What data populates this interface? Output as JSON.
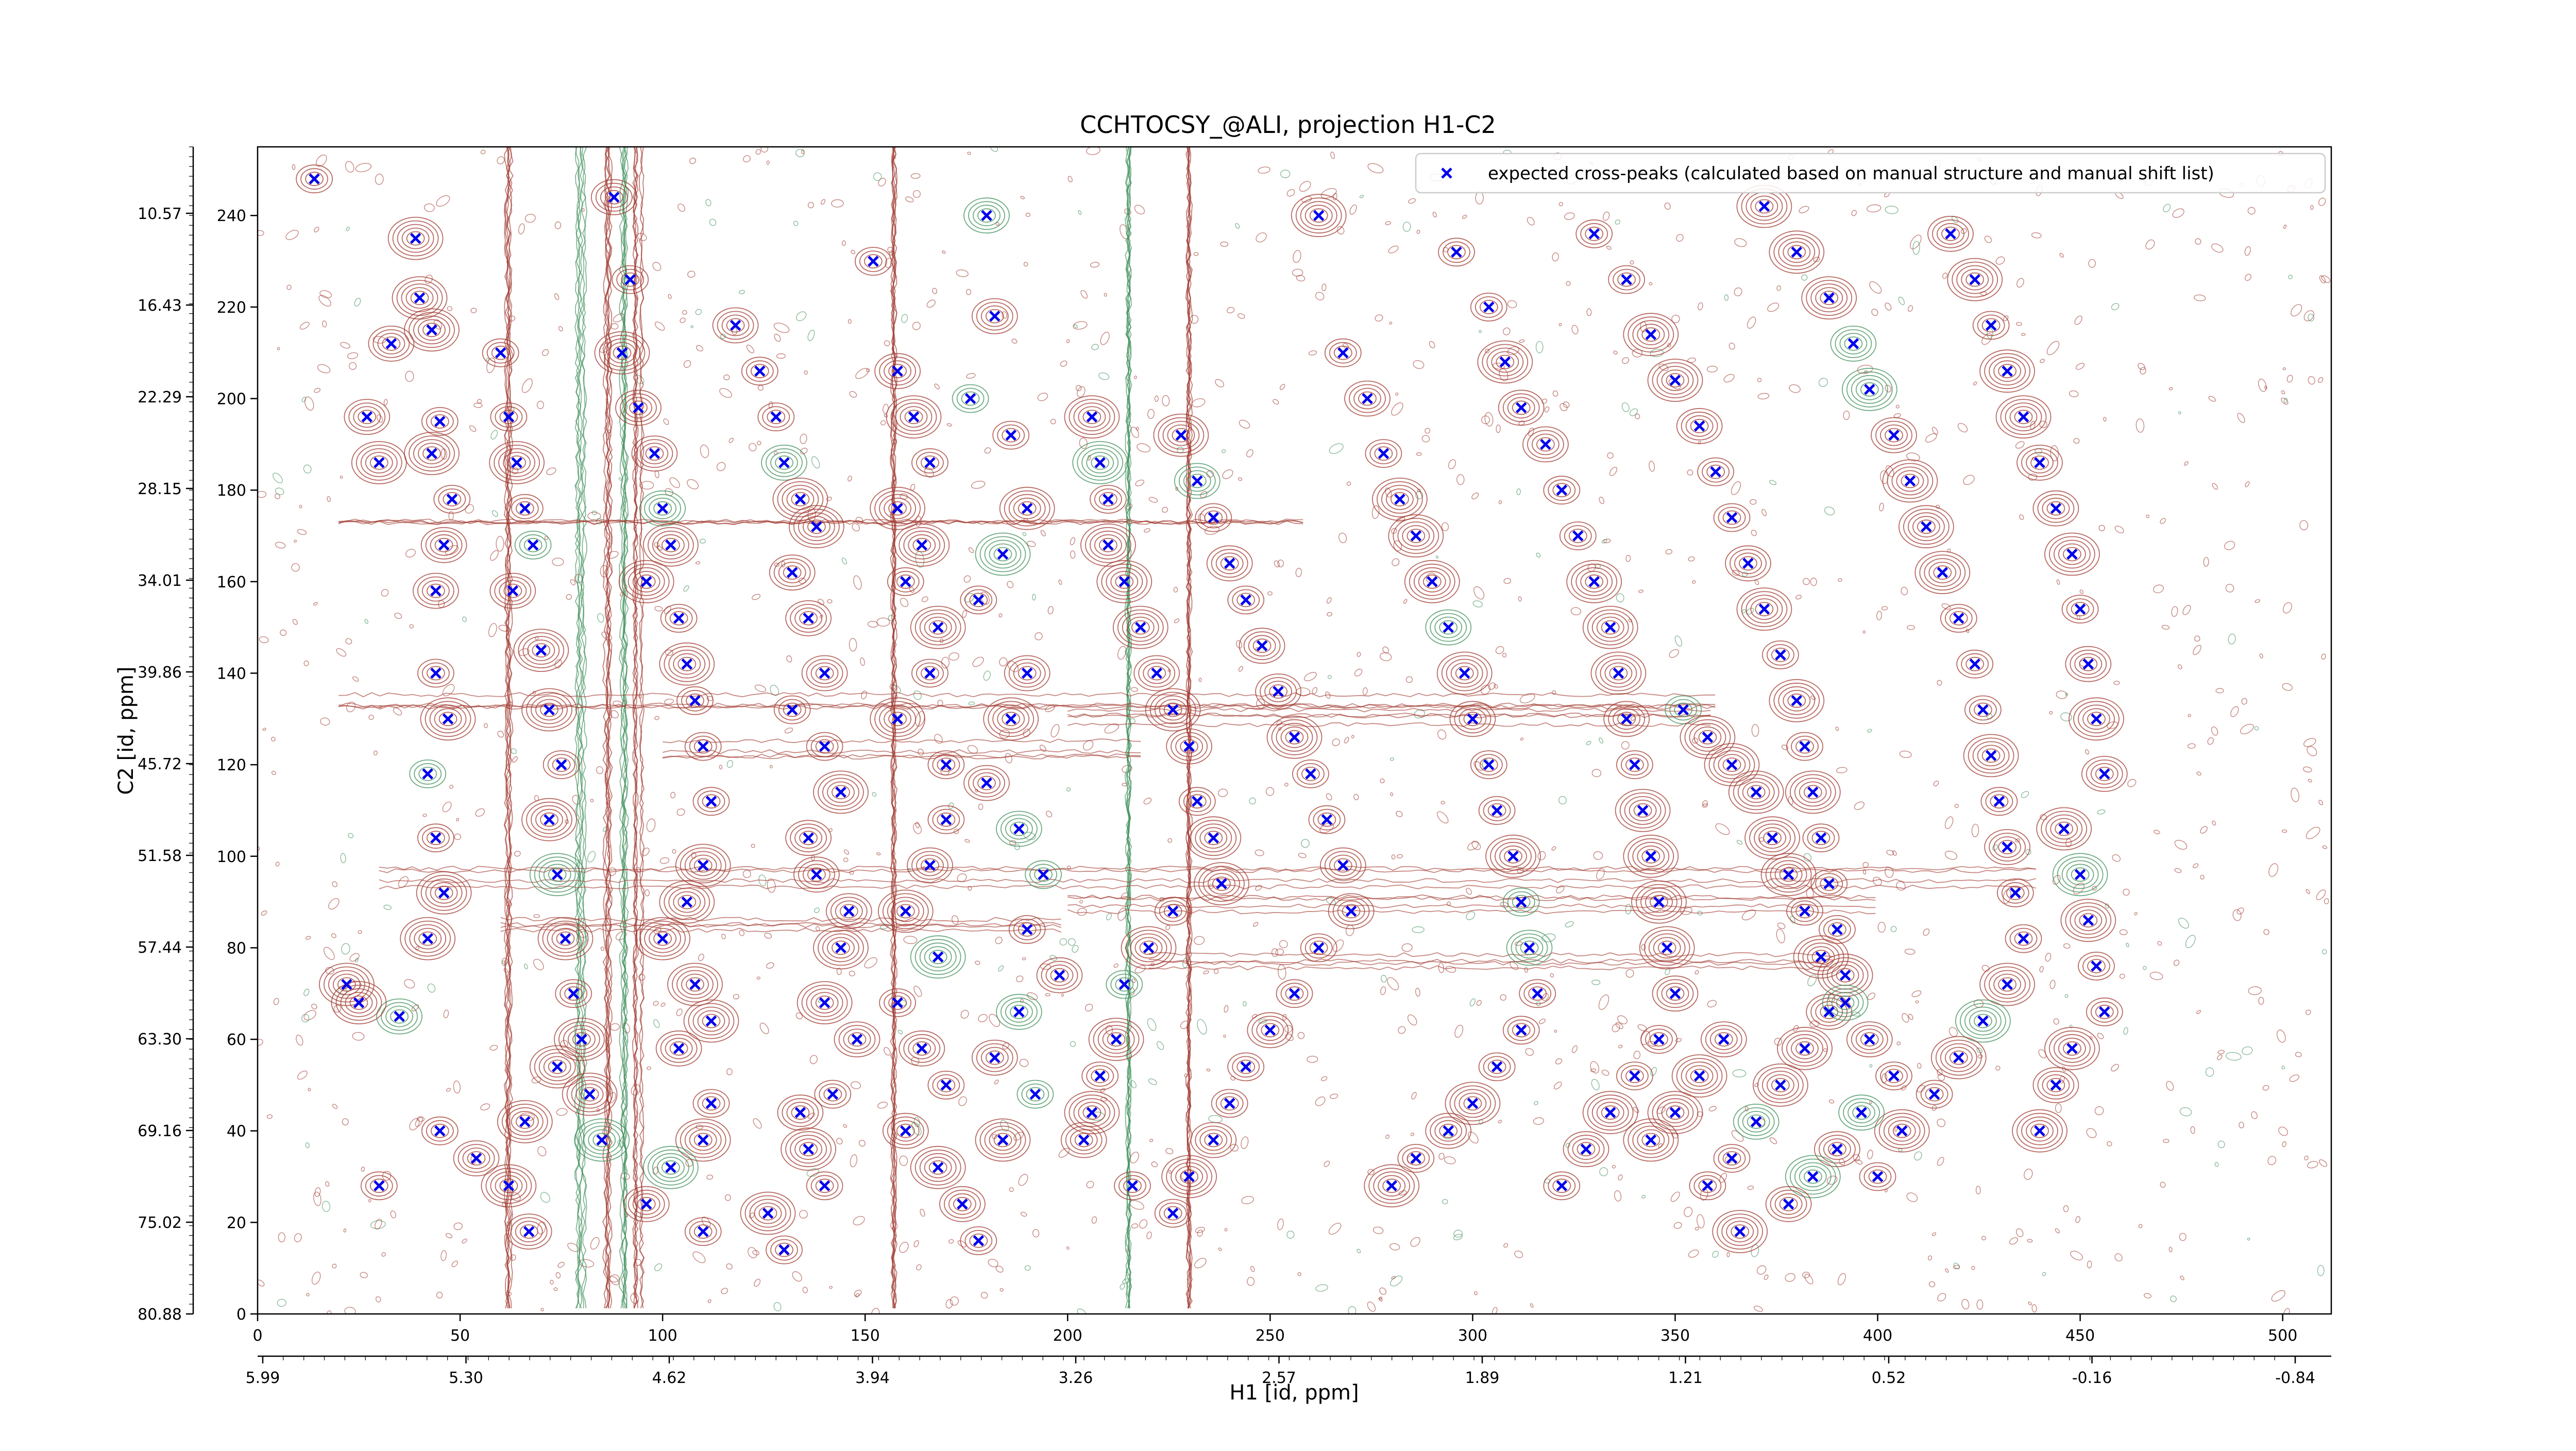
{
  "chart_data": {
    "type": "contour",
    "title": "CCHTOCSY_@ALI, projection H1-C2",
    "xlabel": "H1 [id, ppm]",
    "ylabel": "C2 [id, ppm]",
    "x_index_range": [
      0,
      512
    ],
    "y_index_range": [
      0,
      255
    ],
    "x_index_ticks": [
      0,
      50,
      100,
      150,
      200,
      250,
      300,
      350,
      400,
      450,
      500
    ],
    "y_index_ticks": [
      0,
      20,
      40,
      60,
      80,
      100,
      120,
      140,
      160,
      180,
      200,
      220,
      240
    ],
    "x_ppm_tick_labels": [
      "5.99",
      "5.30",
      "4.62",
      "3.94",
      "3.26",
      "2.57",
      "1.89",
      "1.21",
      "0.52",
      "-0.16",
      "-0.84"
    ],
    "y_ppm_tick_labels": [
      "80.88",
      "75.02",
      "69.16",
      "63.30",
      "57.44",
      "51.58",
      "45.72",
      "39.86",
      "34.01",
      "28.15",
      "22.29",
      "16.43",
      "10.57"
    ],
    "legend": {
      "placement": "top-right",
      "entries": [
        "expected cross-peaks (calculated based on manual structure and manual shift list)"
      ]
    },
    "colors": {
      "positive_contour": "#a0392f",
      "negative_contour": "#3f8f5a",
      "expected_peak": "#0000ee"
    },
    "series": [
      {
        "name": "expected cross-peaks (calculated based on manual structure and manual shift list)",
        "marker": "x",
        "points": [
          [
            14,
            248
          ],
          [
            27,
            196
          ],
          [
            30,
            186
          ],
          [
            33,
            212
          ],
          [
            39,
            235
          ],
          [
            40,
            222
          ],
          [
            43,
            215
          ],
          [
            45,
            195
          ],
          [
            43,
            188
          ],
          [
            48,
            178
          ],
          [
            46,
            168
          ],
          [
            44,
            158
          ],
          [
            44,
            140
          ],
          [
            47,
            130
          ],
          [
            42,
            118
          ],
          [
            44,
            104
          ],
          [
            46,
            92
          ],
          [
            42,
            82
          ],
          [
            35,
            65
          ],
          [
            25,
            68
          ],
          [
            22,
            72
          ],
          [
            30,
            28
          ],
          [
            54,
            34
          ],
          [
            45,
            40
          ],
          [
            60,
            210
          ],
          [
            62,
            196
          ],
          [
            64,
            186
          ],
          [
            66,
            176
          ],
          [
            68,
            168
          ],
          [
            63,
            158
          ],
          [
            70,
            145
          ],
          [
            72,
            132
          ],
          [
            75,
            120
          ],
          [
            72,
            108
          ],
          [
            74,
            96
          ],
          [
            76,
            82
          ],
          [
            78,
            70
          ],
          [
            80,
            60
          ],
          [
            82,
            48
          ],
          [
            85,
            38
          ],
          [
            74,
            54
          ],
          [
            66,
            42
          ],
          [
            62,
            28
          ],
          [
            67,
            18
          ],
          [
            88,
            244
          ],
          [
            92,
            226
          ],
          [
            90,
            210
          ],
          [
            94,
            198
          ],
          [
            98,
            188
          ],
          [
            100,
            176
          ],
          [
            102,
            168
          ],
          [
            96,
            160
          ],
          [
            104,
            152
          ],
          [
            106,
            142
          ],
          [
            108,
            134
          ],
          [
            110,
            124
          ],
          [
            112,
            112
          ],
          [
            110,
            98
          ],
          [
            106,
            90
          ],
          [
            100,
            82
          ],
          [
            108,
            72
          ],
          [
            112,
            64
          ],
          [
            104,
            58
          ],
          [
            112,
            46
          ],
          [
            110,
            38
          ],
          [
            102,
            32
          ],
          [
            96,
            24
          ],
          [
            110,
            18
          ],
          [
            118,
            216
          ],
          [
            124,
            206
          ],
          [
            128,
            196
          ],
          [
            130,
            186
          ],
          [
            134,
            178
          ],
          [
            138,
            172
          ],
          [
            132,
            162
          ],
          [
            136,
            152
          ],
          [
            140,
            140
          ],
          [
            132,
            132
          ],
          [
            140,
            124
          ],
          [
            144,
            114
          ],
          [
            136,
            104
          ],
          [
            138,
            96
          ],
          [
            146,
            88
          ],
          [
            144,
            80
          ],
          [
            140,
            68
          ],
          [
            148,
            60
          ],
          [
            142,
            48
          ],
          [
            134,
            44
          ],
          [
            136,
            36
          ],
          [
            140,
            28
          ],
          [
            126,
            22
          ],
          [
            130,
            14
          ],
          [
            152,
            230
          ],
          [
            158,
            206
          ],
          [
            162,
            196
          ],
          [
            166,
            186
          ],
          [
            158,
            176
          ],
          [
            164,
            168
          ],
          [
            160,
            160
          ],
          [
            168,
            150
          ],
          [
            166,
            140
          ],
          [
            158,
            130
          ],
          [
            170,
            120
          ],
          [
            170,
            108
          ],
          [
            166,
            98
          ],
          [
            160,
            88
          ],
          [
            168,
            78
          ],
          [
            158,
            68
          ],
          [
            164,
            58
          ],
          [
            170,
            50
          ],
          [
            160,
            40
          ],
          [
            168,
            32
          ],
          [
            174,
            24
          ],
          [
            178,
            16
          ],
          [
            180,
            240
          ],
          [
            182,
            218
          ],
          [
            176,
            200
          ],
          [
            186,
            192
          ],
          [
            190,
            176
          ],
          [
            184,
            166
          ],
          [
            178,
            156
          ],
          [
            190,
            140
          ],
          [
            186,
            130
          ],
          [
            180,
            116
          ],
          [
            188,
            106
          ],
          [
            194,
            96
          ],
          [
            190,
            84
          ],
          [
            198,
            74
          ],
          [
            188,
            66
          ],
          [
            182,
            56
          ],
          [
            192,
            48
          ],
          [
            184,
            38
          ],
          [
            206,
            196
          ],
          [
            208,
            186
          ],
          [
            210,
            178
          ],
          [
            210,
            168
          ],
          [
            214,
            160
          ],
          [
            218,
            150
          ],
          [
            222,
            140
          ],
          [
            226,
            132
          ],
          [
            230,
            124
          ],
          [
            232,
            112
          ],
          [
            236,
            104
          ],
          [
            238,
            94
          ],
          [
            226,
            88
          ],
          [
            220,
            80
          ],
          [
            214,
            72
          ],
          [
            212,
            60
          ],
          [
            208,
            52
          ],
          [
            206,
            44
          ],
          [
            204,
            38
          ],
          [
            216,
            28
          ],
          [
            228,
            192
          ],
          [
            232,
            182
          ],
          [
            236,
            174
          ],
          [
            240,
            164
          ],
          [
            244,
            156
          ],
          [
            248,
            146
          ],
          [
            252,
            136
          ],
          [
            256,
            126
          ],
          [
            260,
            118
          ],
          [
            264,
            108
          ],
          [
            268,
            98
          ],
          [
            270,
            88
          ],
          [
            262,
            80
          ],
          [
            256,
            70
          ],
          [
            250,
            62
          ],
          [
            244,
            54
          ],
          [
            240,
            46
          ],
          [
            236,
            38
          ],
          [
            230,
            30
          ],
          [
            226,
            22
          ],
          [
            262,
            240
          ],
          [
            268,
            210
          ],
          [
            274,
            200
          ],
          [
            278,
            188
          ],
          [
            282,
            178
          ],
          [
            286,
            170
          ],
          [
            290,
            160
          ],
          [
            294,
            150
          ],
          [
            298,
            140
          ],
          [
            300,
            130
          ],
          [
            304,
            120
          ],
          [
            306,
            110
          ],
          [
            310,
            100
          ],
          [
            312,
            90
          ],
          [
            314,
            80
          ],
          [
            316,
            70
          ],
          [
            312,
            62
          ],
          [
            306,
            54
          ],
          [
            300,
            46
          ],
          [
            294,
            40
          ],
          [
            286,
            34
          ],
          [
            280,
            28
          ],
          [
            296,
            232
          ],
          [
            304,
            220
          ],
          [
            308,
            208
          ],
          [
            312,
            198
          ],
          [
            318,
            190
          ],
          [
            322,
            180
          ],
          [
            326,
            170
          ],
          [
            330,
            160
          ],
          [
            334,
            150
          ],
          [
            336,
            140
          ],
          [
            338,
            130
          ],
          [
            340,
            120
          ],
          [
            342,
            110
          ],
          [
            344,
            100
          ],
          [
            346,
            90
          ],
          [
            348,
            80
          ],
          [
            350,
            70
          ],
          [
            346,
            60
          ],
          [
            340,
            52
          ],
          [
            334,
            44
          ],
          [
            328,
            36
          ],
          [
            322,
            28
          ],
          [
            330,
            236
          ],
          [
            338,
            226
          ],
          [
            344,
            214
          ],
          [
            350,
            204
          ],
          [
            356,
            194
          ],
          [
            360,
            184
          ],
          [
            364,
            174
          ],
          [
            368,
            164
          ],
          [
            372,
            154
          ],
          [
            376,
            144
          ],
          [
            380,
            134
          ],
          [
            382,
            124
          ],
          [
            384,
            114
          ],
          [
            386,
            104
          ],
          [
            388,
            94
          ],
          [
            390,
            84
          ],
          [
            392,
            74
          ],
          [
            388,
            66
          ],
          [
            382,
            58
          ],
          [
            376,
            50
          ],
          [
            370,
            42
          ],
          [
            364,
            34
          ],
          [
            358,
            28
          ],
          [
            366,
            18
          ],
          [
            372,
            242
          ],
          [
            380,
            232
          ],
          [
            388,
            222
          ],
          [
            394,
            212
          ],
          [
            398,
            202
          ],
          [
            404,
            192
          ],
          [
            408,
            182
          ],
          [
            412,
            172
          ],
          [
            416,
            162
          ],
          [
            420,
            152
          ],
          [
            424,
            142
          ],
          [
            426,
            132
          ],
          [
            428,
            122
          ],
          [
            430,
            112
          ],
          [
            432,
            102
          ],
          [
            434,
            92
          ],
          [
            436,
            82
          ],
          [
            432,
            72
          ],
          [
            426,
            64
          ],
          [
            420,
            56
          ],
          [
            414,
            48
          ],
          [
            406,
            40
          ],
          [
            400,
            30
          ],
          [
            418,
            236
          ],
          [
            424,
            226
          ],
          [
            428,
            216
          ],
          [
            432,
            206
          ],
          [
            436,
            196
          ],
          [
            440,
            186
          ],
          [
            444,
            176
          ],
          [
            448,
            166
          ],
          [
            450,
            154
          ],
          [
            452,
            142
          ],
          [
            454,
            130
          ],
          [
            456,
            118
          ],
          [
            446,
            106
          ],
          [
            450,
            96
          ],
          [
            452,
            86
          ],
          [
            454,
            76
          ],
          [
            456,
            66
          ],
          [
            448,
            58
          ],
          [
            444,
            50
          ],
          [
            440,
            40
          ],
          [
            352,
            132
          ],
          [
            358,
            126
          ],
          [
            364,
            120
          ],
          [
            370,
            114
          ],
          [
            374,
            104
          ],
          [
            378,
            96
          ],
          [
            382,
            88
          ],
          [
            386,
            78
          ],
          [
            392,
            68
          ],
          [
            398,
            60
          ],
          [
            404,
            52
          ],
          [
            396,
            44
          ],
          [
            390,
            36
          ],
          [
            384,
            30
          ],
          [
            378,
            24
          ],
          [
            344,
            38
          ],
          [
            350,
            44
          ],
          [
            356,
            52
          ],
          [
            362,
            60
          ]
        ]
      }
    ]
  }
}
